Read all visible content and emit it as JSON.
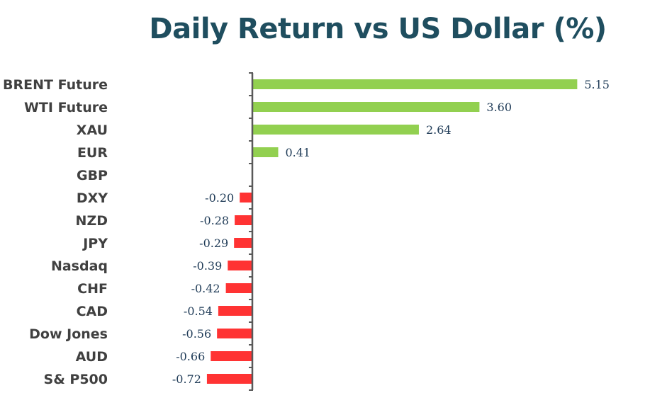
{
  "chart_data": {
    "type": "bar",
    "orientation": "horizontal",
    "title": "Daily Return vs US Dollar (%)",
    "categories": [
      "BRENT Future",
      "WTI Future",
      "XAU",
      "EUR",
      "GBP",
      "DXY",
      "NZD",
      "JPY",
      "Nasdaq",
      "CHF",
      "CAD",
      "Dow Jones",
      "AUD",
      "S& P500"
    ],
    "values": [
      5.15,
      3.6,
      2.64,
      0.41,
      0,
      -0.2,
      -0.28,
      -0.29,
      -0.39,
      -0.42,
      -0.54,
      -0.56,
      -0.66,
      -0.72
    ],
    "value_labels": [
      "5.15",
      "3.60",
      "2.64",
      "0.41",
      "",
      "-0.20",
      "-0.28",
      "-0.29",
      "-0.39",
      "-0.42",
      "-0.54",
      "-0.56",
      "-0.66",
      "-0.72"
    ],
    "colors": {
      "positive": "#92d050",
      "negative": "#ff3333",
      "axis": "#595959"
    },
    "grid": false,
    "legend": "none"
  }
}
